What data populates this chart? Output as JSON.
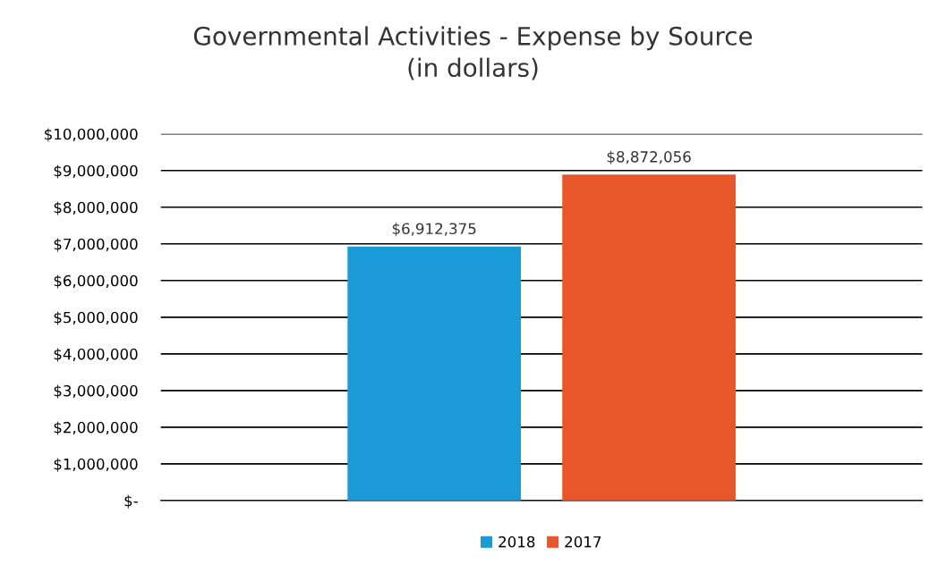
{
  "chart_data": {
    "type": "bar",
    "title": "Governmental Activities - Expense by Source\n(in dollars)",
    "categories": [
      null
    ],
    "series": [
      {
        "name": "2018",
        "color": "#1a9bd7",
        "values": [
          6912375
        ],
        "value_labels": [
          "$6,912,375"
        ]
      },
      {
        "name": "2017",
        "color": "#e8572a",
        "values": [
          8872056
        ],
        "value_labels": [
          "$8,872,056"
        ]
      }
    ],
    "ylim": [
      0,
      10000000
    ],
    "yticks": [
      {
        "value": 0,
        "label": "$-"
      },
      {
        "value": 1000000,
        "label": "$1,000,000"
      },
      {
        "value": 2000000,
        "label": "$2,000,000"
      },
      {
        "value": 3000000,
        "label": "$3,000,000"
      },
      {
        "value": 4000000,
        "label": "$4,000,000"
      },
      {
        "value": 5000000,
        "label": "$5,000,000"
      },
      {
        "value": 6000000,
        "label": "$6,000,000"
      },
      {
        "value": 7000000,
        "label": "$7,000,000"
      },
      {
        "value": 8000000,
        "label": "$8,000,000"
      },
      {
        "value": 9000000,
        "label": "$9,000,000"
      },
      {
        "value": 10000000,
        "label": "$10,000,000"
      }
    ],
    "grid": "y",
    "legend": "bottom",
    "tick_labels": "y"
  }
}
